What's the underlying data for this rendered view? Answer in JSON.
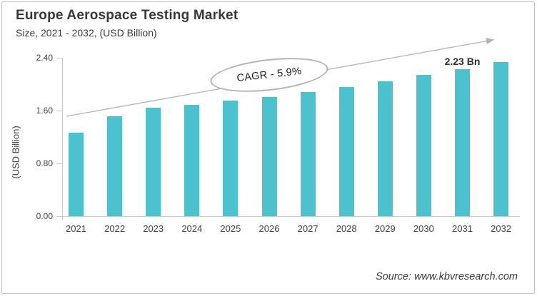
{
  "header": {
    "title": "Europe Aerospace Testing Market",
    "subtitle": "Size, 2021 - 2032, (USD Billion)"
  },
  "footer": {
    "source": "Source: www.kbvresearch.com"
  },
  "chart_data": {
    "type": "bar",
    "title": "Europe Aerospace Testing Market",
    "subtitle": "Size, 2021 - 2032, (USD Billion)",
    "categories": [
      "2021",
      "2022",
      "2023",
      "2024",
      "2025",
      "2026",
      "2027",
      "2028",
      "2029",
      "2030",
      "2031",
      "2032"
    ],
    "values": [
      1.26,
      1.51,
      1.64,
      1.69,
      1.75,
      1.81,
      1.88,
      1.96,
      2.04,
      2.14,
      2.23,
      2.34
    ],
    "xlabel": "",
    "ylabel": "(USD Billion)",
    "unit": "USD Billion",
    "ylim": [
      0,
      2.4
    ],
    "y_tick_labels": [
      "0.00",
      "0.80",
      "1.60",
      "2.40"
    ],
    "y_tick_values": [
      0,
      0.8,
      1.6,
      2.4
    ],
    "grid": false,
    "legend": false,
    "bar_color": "#4DC2CF",
    "axis_color": "#c9c9c9",
    "arrow_color": "#b3b3b3",
    "annotations": {
      "cagr_label": "CAGR - 5.9%",
      "value_label": {
        "text": "2.23 Bn",
        "category": "2031"
      }
    }
  }
}
